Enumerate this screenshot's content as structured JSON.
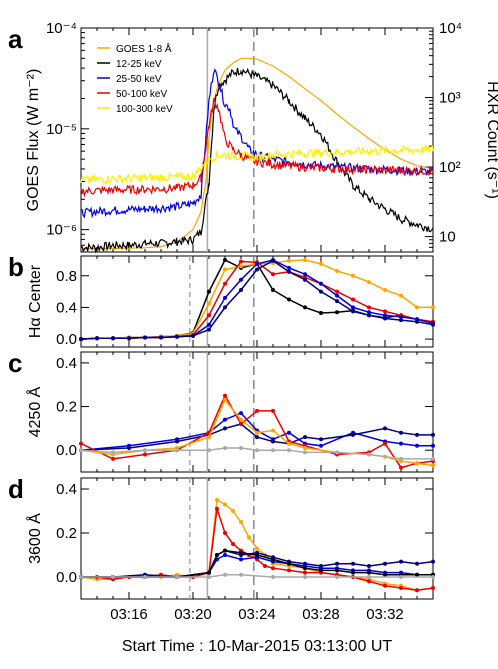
{
  "panel_letters": [
    "a",
    "b",
    "c",
    "d"
  ],
  "x_axis": {
    "label": "Start Time : 10-Mar-2015 03:13:00 UT",
    "ticks": [
      "03:16",
      "03:20",
      "03:24",
      "03:28",
      "03:32"
    ]
  },
  "markers": {
    "dashed_light": "03:19.8",
    "solid_gray": "03:20.9",
    "dashed_dark": "03:23.8"
  },
  "chart_data": [
    {
      "type": "line",
      "panel": "a",
      "ylabel_left": "GOES Flux (W m⁻²)",
      "ylabel_right": "HXR Count (s⁻¹)",
      "left_ticks": [
        "10⁻⁶",
        "10⁻⁵",
        "10⁻⁴"
      ],
      "right_ticks": [
        "10",
        "10²",
        "10³",
        "10⁴"
      ],
      "ylim_left": [
        6e-07,
        0.0001
      ],
      "ylim_right": [
        6,
        10000
      ],
      "x_minutes": [
        0,
        22
      ],
      "legend": "top-left",
      "series": [
        {
          "name": "GOES 1-8 Å",
          "color": "#ffa500",
          "axis": "left",
          "x": [
            0,
            2,
            4,
            5,
            6,
            7,
            7.5,
            7.8,
            8,
            8.2,
            8.5,
            8.8,
            9,
            9.5,
            10,
            10.5,
            11,
            12,
            13,
            14,
            15,
            16,
            17,
            18,
            19,
            20,
            21,
            22
          ],
          "y": [
            6.5e-07,
            6.5e-07,
            6.6e-07,
            6.8e-07,
            7.5e-07,
            1e-06,
            1.5e-06,
            3e-06,
            8e-06,
            1.6e-05,
            2.5e-05,
            3.3e-05,
            3.8e-05,
            4.5e-05,
            5e-05,
            5e-05,
            4.9e-05,
            4.2e-05,
            3.3e-05,
            2.5e-05,
            1.9e-05,
            1.4e-05,
            1.05e-05,
            8e-06,
            6.2e-06,
            5e-06,
            4.3e-06,
            4e-06
          ]
        },
        {
          "name": "12-25 keV",
          "color": "#000000",
          "axis": "right",
          "x": [
            0,
            1,
            2,
            3,
            4,
            5,
            6,
            7,
            7.5,
            8,
            8.3,
            8.6,
            9,
            9.5,
            10,
            11,
            12,
            13,
            14,
            15,
            16,
            17,
            18,
            19,
            20,
            21,
            22
          ],
          "y": [
            7,
            7,
            7.5,
            7.5,
            8,
            8,
            8.5,
            9,
            12,
            60,
            700,
            1500,
            1800,
            2300,
            2500,
            2000,
            1500,
            900,
            500,
            300,
            120,
            55,
            35,
            25,
            18,
            15,
            13
          ]
        },
        {
          "name": "25-50 keV",
          "color": "#0000dd",
          "axis": "right",
          "x": [
            0,
            2,
            4,
            6,
            7,
            7.5,
            8,
            8.3,
            8.6,
            9,
            9.3,
            9.6,
            10,
            10.5,
            11,
            12,
            14,
            16,
            18,
            20,
            22
          ],
          "y": [
            22,
            24,
            25,
            27,
            30,
            40,
            900,
            2600,
            1700,
            800,
            700,
            350,
            280,
            180,
            150,
            130,
            110,
            100,
            95,
            90,
            85
          ]
        },
        {
          "name": "50-100 keV",
          "color": "#ee0000",
          "axis": "right",
          "x": [
            0,
            2,
            4,
            6,
            7,
            7.5,
            8,
            8.3,
            8.6,
            9,
            9.5,
            10,
            10.5,
            11,
            12,
            14,
            16,
            18,
            20,
            22
          ],
          "y": [
            45,
            47,
            48,
            50,
            55,
            70,
            400,
            900,
            700,
            250,
            180,
            150,
            130,
            120,
            110,
            100,
            95,
            92,
            90,
            88
          ]
        },
        {
          "name": "100-300 keV",
          "color": "#ffee00",
          "axis": "right",
          "x": [
            0,
            2,
            4,
            6,
            7,
            8,
            8.5,
            9,
            10,
            11,
            12,
            14,
            16,
            18,
            20,
            22
          ],
          "y": [
            65,
            68,
            70,
            72,
            74,
            130,
            150,
            150,
            145,
            140,
            150,
            160,
            165,
            170,
            175,
            180
          ]
        }
      ]
    },
    {
      "type": "line",
      "panel": "b",
      "ylabel": "Hα Center",
      "yticks": [
        0.0,
        0.4,
        0.8
      ],
      "ylim": [
        -0.1,
        1.05
      ],
      "x_minutes": [
        0,
        22
      ],
      "series": [
        {
          "color": "#000000",
          "x": [
            0,
            1,
            2,
            3,
            4,
            5,
            6,
            7,
            8,
            9,
            10,
            11,
            12,
            13,
            14,
            15,
            16,
            17,
            18,
            19,
            20,
            21,
            22
          ],
          "y": [
            0.0,
            0.01,
            0.01,
            0.02,
            0.02,
            0.03,
            0.04,
            0.08,
            0.6,
            1.0,
            0.9,
            0.95,
            0.62,
            0.5,
            0.4,
            0.33,
            0.34,
            0.36,
            0.3,
            0.27,
            0.3,
            0.25,
            0.2
          ]
        },
        {
          "color": "#ffa500",
          "x": [
            0,
            1,
            2,
            3,
            4,
            5,
            6,
            7,
            8,
            9,
            10,
            11,
            12,
            13,
            14,
            15,
            16,
            17,
            18,
            19,
            20,
            21,
            22
          ],
          "y": [
            0.0,
            0.01,
            0.01,
            0.02,
            0.02,
            0.03,
            0.04,
            0.07,
            0.45,
            0.88,
            0.92,
            0.95,
            0.96,
            0.99,
            1.0,
            0.95,
            0.86,
            0.8,
            0.72,
            0.62,
            0.55,
            0.4,
            0.4
          ]
        },
        {
          "color": "#ee0000",
          "x": [
            0,
            1,
            2,
            3,
            4,
            5,
            6,
            7,
            8,
            9,
            10,
            11,
            12,
            13,
            14,
            15,
            16,
            17,
            18,
            19,
            20,
            21,
            22
          ],
          "y": [
            0.0,
            0.01,
            0.01,
            0.01,
            0.02,
            0.02,
            0.03,
            0.05,
            0.3,
            0.7,
            0.98,
            0.97,
            0.82,
            0.85,
            0.78,
            0.7,
            0.6,
            0.5,
            0.4,
            0.35,
            0.3,
            0.25,
            0.22
          ]
        },
        {
          "color": "#0000dd",
          "x": [
            0,
            1,
            2,
            3,
            4,
            5,
            6,
            7,
            8,
            9,
            10,
            11,
            12,
            13,
            14,
            15,
            16,
            17,
            18,
            19,
            20,
            21,
            22
          ],
          "y": [
            0.0,
            0.01,
            0.01,
            0.01,
            0.02,
            0.02,
            0.03,
            0.04,
            0.18,
            0.52,
            0.75,
            0.95,
            1.0,
            0.9,
            0.82,
            0.7,
            0.55,
            0.4,
            0.34,
            0.3,
            0.28,
            0.25,
            0.2
          ]
        },
        {
          "color": "#000080",
          "x": [
            0,
            1,
            2,
            3,
            4,
            5,
            6,
            7,
            8,
            9,
            10,
            11,
            12,
            13,
            14,
            15,
            16,
            17,
            18,
            19,
            20,
            21,
            22
          ],
          "y": [
            0.0,
            0.01,
            0.01,
            0.01,
            0.02,
            0.02,
            0.03,
            0.04,
            0.12,
            0.4,
            0.62,
            0.88,
            0.99,
            0.85,
            0.75,
            0.6,
            0.48,
            0.35,
            0.3,
            0.26,
            0.24,
            0.22,
            0.18
          ]
        }
      ]
    },
    {
      "type": "line",
      "panel": "c",
      "ylabel": "4250 Å",
      "yticks": [
        0.0,
        0.2,
        0.4
      ],
      "ylim": [
        -0.1,
        0.45
      ],
      "x_minutes": [
        0,
        22
      ],
      "series": [
        {
          "color": "#0000dd",
          "x": [
            0,
            3,
            6,
            8,
            9,
            10,
            11,
            12,
            13,
            14,
            15,
            17,
            19,
            20,
            21,
            22
          ],
          "y": [
            0.0,
            0.02,
            0.05,
            0.08,
            0.14,
            0.17,
            0.09,
            0.05,
            0.08,
            0.03,
            0.02,
            0.08,
            0.04,
            0.03,
            0.02,
            0.02
          ]
        },
        {
          "color": "#000080",
          "x": [
            0,
            3,
            6,
            8,
            9,
            10,
            11,
            12,
            13,
            14,
            15,
            17,
            19,
            20,
            21,
            22
          ],
          "y": [
            0.0,
            0.01,
            0.04,
            0.07,
            0.1,
            0.12,
            0.06,
            0.04,
            0.03,
            0.06,
            0.05,
            0.07,
            0.1,
            0.08,
            0.07,
            0.07
          ]
        },
        {
          "color": "#ee0000",
          "x": [
            0,
            2,
            4,
            6,
            8,
            9,
            10,
            11,
            12,
            13,
            14,
            16,
            18,
            19,
            20,
            21,
            22
          ],
          "y": [
            0.03,
            -0.04,
            -0.02,
            0.0,
            0.08,
            0.25,
            0.12,
            0.18,
            0.18,
            0.04,
            0.02,
            -0.02,
            -0.01,
            0.03,
            -0.08,
            -0.06,
            -0.05
          ]
        },
        {
          "color": "#ffa500",
          "x": [
            0,
            2,
            4,
            6,
            8,
            9,
            10,
            11,
            12,
            13,
            14,
            16,
            18,
            19,
            20,
            21,
            22
          ],
          "y": [
            0.0,
            -0.02,
            0.0,
            0.01,
            0.06,
            0.23,
            0.14,
            0.08,
            0.09,
            0.03,
            0.01,
            -0.01,
            -0.02,
            -0.03,
            -0.05,
            -0.06,
            -0.07
          ]
        },
        {
          "color": "#aaaaaa",
          "x": [
            0,
            2,
            4,
            6,
            8,
            9,
            10,
            11,
            12,
            13,
            14,
            16,
            18,
            20,
            22
          ],
          "y": [
            0.0,
            -0.01,
            0.0,
            0.0,
            0.0,
            0.01,
            0.01,
            0.0,
            0.0,
            0.0,
            -0.01,
            -0.01,
            -0.02,
            -0.04,
            -0.04
          ]
        }
      ]
    },
    {
      "type": "line",
      "panel": "d",
      "ylabel": "3600 Å",
      "yticks": [
        0.0,
        0.2,
        0.4
      ],
      "ylim": [
        -0.1,
        0.45
      ],
      "x_minutes": [
        0,
        22
      ],
      "series": [
        {
          "color": "#ffa500",
          "x": [
            0,
            1,
            2,
            3,
            4,
            5,
            6,
            7,
            8,
            8.5,
            9,
            9.5,
            10,
            10.5,
            11,
            11.5,
            12,
            13,
            14,
            15,
            16,
            17,
            18,
            19,
            20,
            21,
            22
          ],
          "y": [
            0.0,
            -0.01,
            -0.01,
            0.0,
            0.01,
            0.0,
            0.01,
            0.0,
            0.02,
            0.35,
            0.33,
            0.3,
            0.25,
            0.18,
            0.13,
            0.1,
            0.06,
            0.05,
            0.04,
            0.02,
            0.01,
            0.0,
            -0.01,
            -0.03,
            -0.04,
            -0.06,
            -0.05
          ]
        },
        {
          "color": "#ee0000",
          "x": [
            0,
            1,
            2,
            3,
            4,
            5,
            6,
            7,
            8,
            8.5,
            9,
            9.5,
            10,
            10.5,
            11,
            11.5,
            12,
            13,
            14,
            15,
            16,
            17,
            18,
            19,
            20,
            21,
            22
          ],
          "y": [
            0.0,
            0.0,
            -0.01,
            0.0,
            0.0,
            0.01,
            0.0,
            0.0,
            0.02,
            0.31,
            0.2,
            0.15,
            0.12,
            0.1,
            0.08,
            0.05,
            0.04,
            0.03,
            0.02,
            0.02,
            0.01,
            0.0,
            -0.02,
            -0.04,
            -0.05,
            -0.06,
            -0.05
          ]
        },
        {
          "color": "#000080",
          "x": [
            0,
            2,
            4,
            6,
            8,
            8.5,
            9,
            10,
            11,
            12,
            13,
            14,
            15,
            16,
            17,
            18,
            19,
            20,
            21,
            22
          ],
          "y": [
            0.0,
            0.0,
            0.01,
            0.0,
            0.02,
            0.1,
            0.12,
            0.1,
            0.11,
            0.09,
            0.07,
            0.06,
            0.05,
            0.06,
            0.06,
            0.05,
            0.06,
            0.07,
            0.06,
            0.07
          ]
        },
        {
          "color": "#0000dd",
          "x": [
            0,
            2,
            4,
            6,
            8,
            8.5,
            9,
            10,
            11,
            12,
            13,
            14,
            15,
            16,
            17,
            18,
            19,
            20,
            21,
            22
          ],
          "y": [
            0.0,
            0.0,
            0.0,
            0.0,
            0.02,
            0.08,
            0.1,
            0.08,
            0.09,
            0.07,
            0.06,
            0.05,
            0.04,
            0.04,
            0.03,
            0.03,
            0.02,
            0.02,
            0.01,
            0.01
          ]
        },
        {
          "color": "#000000",
          "x": [
            0,
            2,
            4,
            6,
            8,
            8.5,
            9,
            10,
            11,
            12,
            13,
            14,
            15,
            16,
            17,
            18,
            19,
            20,
            21,
            22
          ],
          "y": [
            0.0,
            0.0,
            0.0,
            0.0,
            0.02,
            0.1,
            0.12,
            0.11,
            0.1,
            0.08,
            0.06,
            0.04,
            0.03,
            0.03,
            0.02,
            0.02,
            0.01,
            0.01,
            0.01,
            0.01
          ]
        },
        {
          "color": "#aaaaaa",
          "x": [
            0,
            2,
            4,
            6,
            8,
            9,
            10,
            12,
            14,
            16,
            18,
            20,
            22
          ],
          "y": [
            0.0,
            0.0,
            0.0,
            0.0,
            0.0,
            0.01,
            0.01,
            0.0,
            0.0,
            0.0,
            0.0,
            0.0,
            0.0
          ]
        }
      ]
    }
  ]
}
